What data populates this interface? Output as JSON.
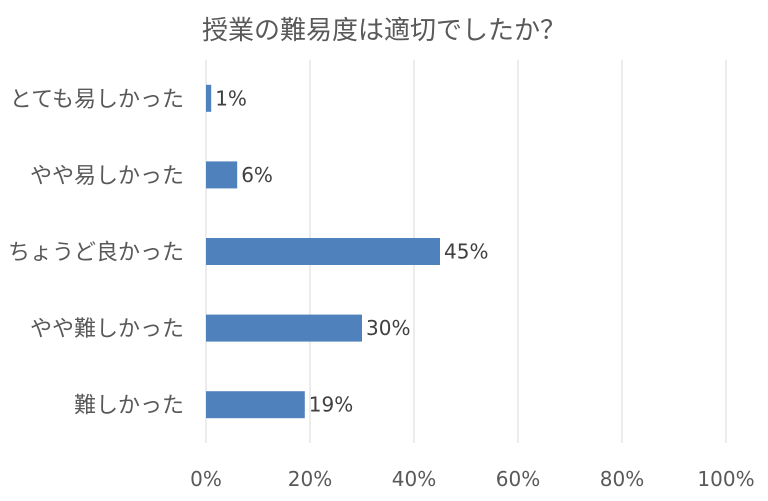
{
  "chart_data": {
    "type": "bar",
    "orientation": "horizontal",
    "title": "授業の難易度は適切でしたか？",
    "categories": [
      "とても易しかった",
      "やや易しかった",
      "ちょうど良かった",
      "やや難しかった",
      "難しかった"
    ],
    "values": [
      1,
      6,
      45,
      30,
      19
    ],
    "data_labels": [
      "1%",
      "6%",
      "45%",
      "30%",
      "19%"
    ],
    "x_ticks": [
      "0%",
      "20%",
      "40%",
      "60%",
      "80%",
      "100%"
    ],
    "xlim": [
      0,
      100
    ],
    "grid": "vertical",
    "bar_color": "#4f81bd"
  }
}
